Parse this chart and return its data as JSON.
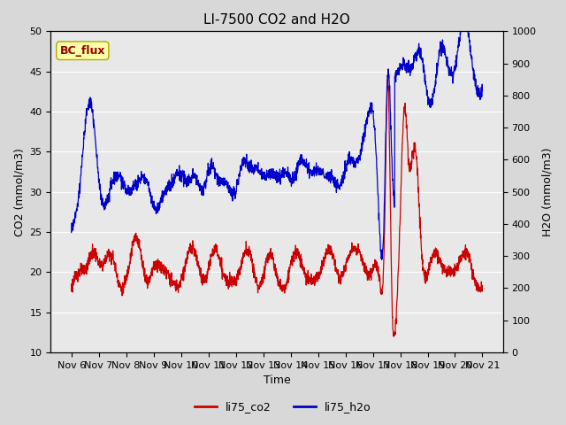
{
  "title": "LI-7500 CO2 and H2O",
  "xlabel": "Time",
  "ylabel_left": "CO2 (mmol/m3)",
  "ylabel_right": "H2O (mmol/m3)",
  "ylim_left": [
    10,
    50
  ],
  "ylim_right": [
    0,
    1000
  ],
  "yticks_left": [
    10,
    15,
    20,
    25,
    30,
    35,
    40,
    45,
    50
  ],
  "yticks_right": [
    0,
    100,
    200,
    300,
    400,
    500,
    600,
    700,
    800,
    900,
    1000
  ],
  "xtick_labels": [
    "Nov 6",
    "Nov 7",
    "Nov 8",
    "Nov 9",
    "Nov 10",
    "Nov 11",
    "Nov 12",
    "Nov 13",
    "Nov 14",
    "Nov 15",
    "Nov 16",
    "Nov 17",
    "Nov 18",
    "Nov 19",
    "Nov 20",
    "Nov 21"
  ],
  "co2_color": "#cc0000",
  "h2o_color": "#0000cc",
  "fig_bg_color": "#d8d8d8",
  "plot_bg_color": "#e8e8e8",
  "annotation_text": "BC_flux",
  "annotation_color": "#990000",
  "annotation_bg": "#ffffaa",
  "legend_co2": "li75_co2",
  "legend_h2o": "li75_h2o",
  "title_fontsize": 11,
  "axis_fontsize": 9,
  "tick_fontsize": 8,
  "linewidth": 0.9
}
